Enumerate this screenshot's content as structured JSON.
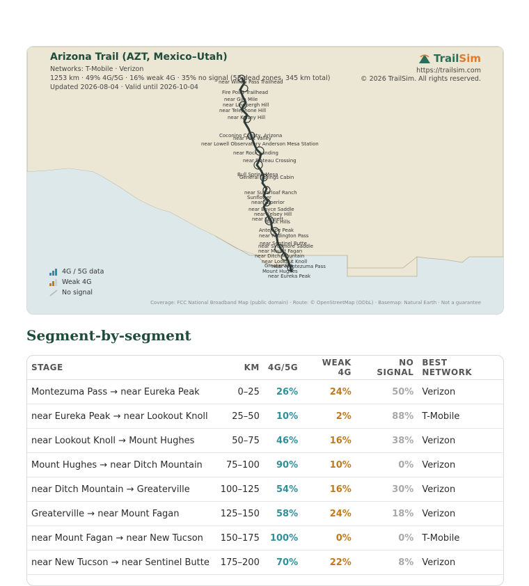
{
  "map": {
    "title": "Arizona Trail (AZT, Mexico–Utah)",
    "networks": "Networks: T-Mobile · Verizon",
    "summary": "1253 km · 49% 4G/5G · 16% weak 4G · 35% no signal (53 dead zones, 345 km total)",
    "updated": "Updated 2026-08-04 · Valid until 2026-10-04",
    "brand_name_a": "Trail",
    "brand_name_b": "Sim",
    "brand_url": "https://trailsim.com",
    "brand_copyright": "© 2026 TrailSim. All rights reserved.",
    "legend": [
      {
        "label": "4G / 5G data",
        "icon": "signal-bars-icon"
      },
      {
        "label": "Weak 4G",
        "icon": "weak-signal-icon"
      },
      {
        "label": "No signal",
        "icon": "no-signal-icon"
      }
    ],
    "attribution": "Coverage: FCC National Broadband Map (public domain) · Route: © OpenStreetMap (ODbL) · Basemap: Natural Earth · Not a guarantee",
    "place_labels": [
      "near Willow Pass Trailhead",
      "Fire Point Trailhead",
      "near Gila Mile",
      "near Lindbergh Hill",
      "near Telephone Hill",
      "near Kelsey Hill",
      "Coconino County, Arizona",
      "near Fort Valley",
      "near Lowell Observatory Anderson Mesa Station",
      "near Rock Landing",
      "near Plateau Crossing",
      "Bull Spring Mesa",
      "General Springs Cabin",
      "near Sugarloaf Ranch",
      "Sunflower",
      "near Superior",
      "near Boyce Saddle",
      "near Kelsey Hill",
      "near Kennett",
      "Black Hills",
      "Antelope Peak",
      "near Redington Pass",
      "near Sentinel Butte",
      "near Sycamore Saddle",
      "near Mount Fagan",
      "near Ditch Mountain",
      "near Lookout Knoll",
      "Greaterville",
      "near Montezuma Pass",
      "Mount Hughes",
      "near Eureka Peak"
    ],
    "colors": {
      "land": "#ece6d4",
      "water": "#dde8ea",
      "border": "#b9ae95",
      "route": "#2d3b38",
      "accent": "#2b6e57",
      "brand_orange": "#e07a2c"
    }
  },
  "segments": {
    "title": "Segment-by-segment",
    "columns": [
      "STAGE",
      "KM",
      "4G/5G",
      "WEAK 4G",
      "NO SIGNAL",
      "BEST NETWORK"
    ],
    "rows": [
      {
        "stage": "Montezuma Pass → near Eureka Peak",
        "km": "0–25",
        "good": "26%",
        "weak": "24%",
        "none": "50%",
        "best": "Verizon"
      },
      {
        "stage": "near Eureka Peak → near Lookout Knoll",
        "km": "25–50",
        "good": "10%",
        "weak": "2%",
        "none": "88%",
        "best": "T-Mobile"
      },
      {
        "stage": "near Lookout Knoll → Mount Hughes",
        "km": "50–75",
        "good": "46%",
        "weak": "16%",
        "none": "38%",
        "best": "Verizon"
      },
      {
        "stage": "Mount Hughes → near Ditch Mountain",
        "km": "75–100",
        "good": "90%",
        "weak": "10%",
        "none": "0%",
        "best": "Verizon"
      },
      {
        "stage": "near Ditch Mountain → Greaterville",
        "km": "100–125",
        "good": "54%",
        "weak": "16%",
        "none": "30%",
        "best": "Verizon"
      },
      {
        "stage": "Greaterville → near Mount Fagan",
        "km": "125–150",
        "good": "58%",
        "weak": "24%",
        "none": "18%",
        "best": "Verizon"
      },
      {
        "stage": "near Mount Fagan → near New Tucson",
        "km": "150–175",
        "good": "100%",
        "weak": "0%",
        "none": "0%",
        "best": "T-Mobile"
      },
      {
        "stage": "near New Tucson → near Sentinel Butte",
        "km": "175–200",
        "good": "70%",
        "weak": "22%",
        "none": "8%",
        "best": "Verizon"
      }
    ]
  }
}
